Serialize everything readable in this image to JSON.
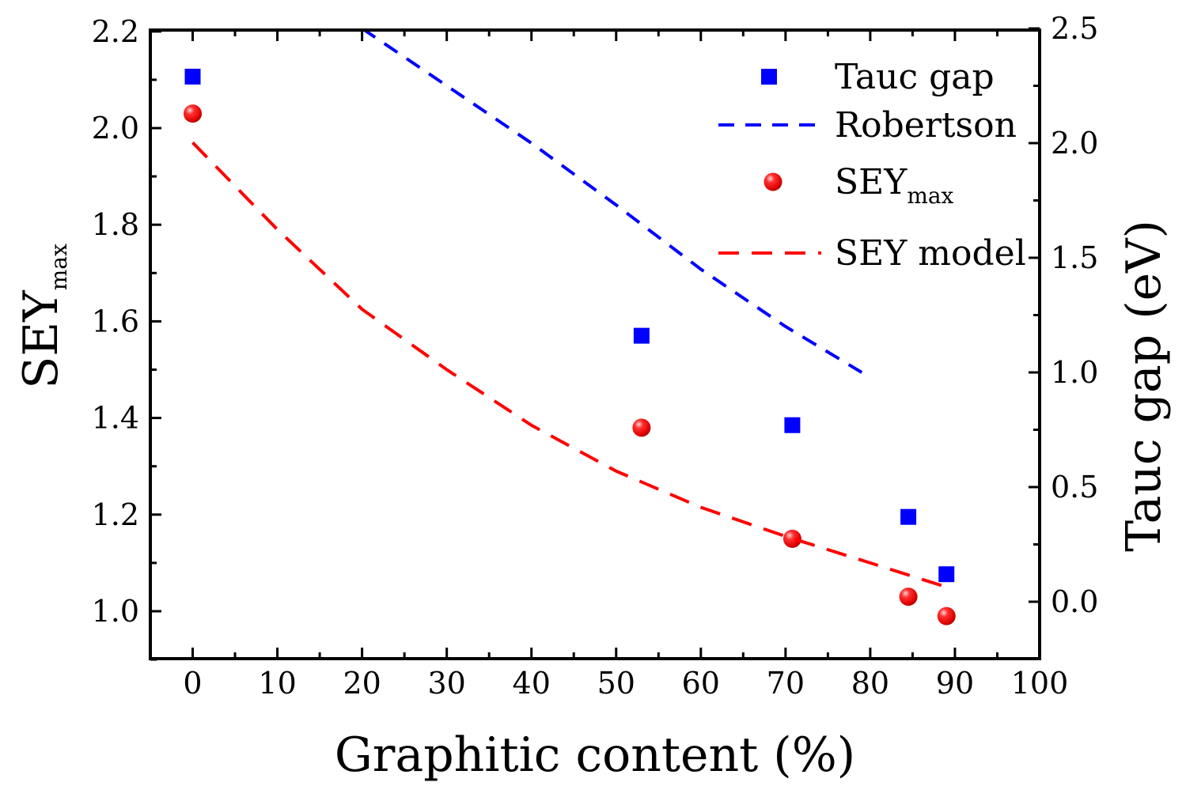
{
  "chart_data": {
    "type": "scatter",
    "title": "",
    "xlabel": "Graphitic content (%)",
    "ylabel_left": {
      "main": "SEY",
      "sub": "max"
    },
    "ylabel_right": "Tauc gap (eV)",
    "xlim": [
      -5,
      100
    ],
    "ylim_left": [
      0.9,
      2.2
    ],
    "ylim_right": [
      -0.25,
      2.5
    ],
    "x_ticks": [
      "0",
      "10",
      "20",
      "30",
      "40",
      "50",
      "60",
      "70",
      "80",
      "90",
      "100"
    ],
    "y_left_ticks": [
      "1.0",
      "1.2",
      "1.4",
      "1.6",
      "1.8",
      "2.0",
      "2.2"
    ],
    "y_right_ticks": [
      "0.0",
      "0.5",
      "1.0",
      "1.5",
      "2.0",
      "2.5"
    ],
    "grid": false,
    "legend_position": "top-right",
    "series": [
      {
        "name": "Tauc gap",
        "kind": "scatter",
        "marker": "square",
        "color": "#0000ff",
        "axis": "right",
        "x": [
          0,
          53,
          70.8,
          84.5,
          89
        ],
        "y": [
          2.29,
          1.16,
          0.77,
          0.37,
          0.12
        ]
      },
      {
        "name": "Robertson",
        "kind": "line",
        "style": "dashed",
        "color": "#0000ff",
        "axis": "right",
        "x": [
          20,
          30,
          40,
          50,
          60,
          70,
          79
        ],
        "y": [
          2.5,
          2.25,
          2.0,
          1.73,
          1.45,
          1.2,
          1.0
        ]
      },
      {
        "name": {
          "main": "SEY",
          "sub": "max"
        },
        "kind": "scatter",
        "marker": "sphere",
        "color": "#ff0000",
        "axis": "left",
        "x": [
          0,
          53,
          70.8,
          84.5,
          89
        ],
        "y": [
          2.03,
          1.38,
          1.15,
          1.03,
          0.99
        ]
      },
      {
        "name": "SEY model",
        "kind": "line",
        "style": "dashed",
        "color": "#ff0000",
        "axis": "left",
        "x": [
          0,
          10,
          20,
          30,
          40,
          50,
          60,
          70,
          80,
          89
        ],
        "y": [
          1.97,
          1.79,
          1.625,
          1.5,
          1.385,
          1.29,
          1.215,
          1.155,
          1.1,
          1.05
        ]
      }
    ]
  }
}
